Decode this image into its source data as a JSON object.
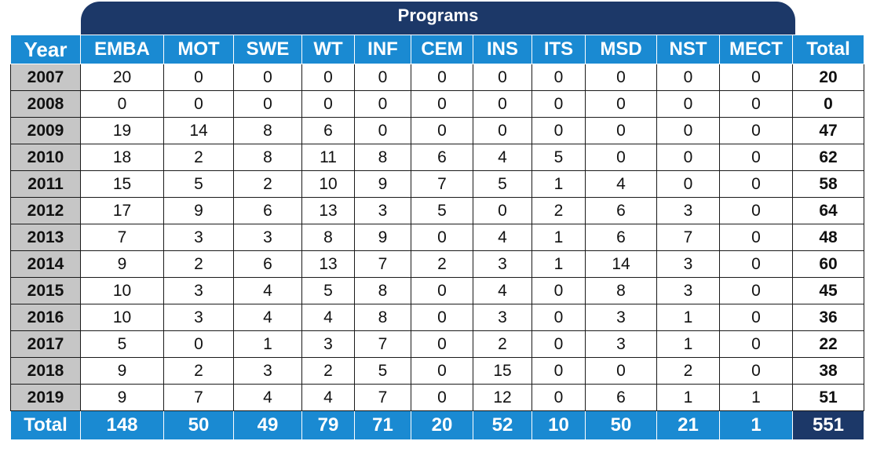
{
  "chart_data": {
    "type": "table",
    "title": "Programs",
    "year_header": "Year",
    "total_header": "Total",
    "total_row_label": "Total",
    "programs": [
      "EMBA",
      "MOT",
      "SWE",
      "WT",
      "INF",
      "CEM",
      "INS",
      "ITS",
      "MSD",
      "NST",
      "MECT"
    ],
    "rows": [
      {
        "year": "2007",
        "values": [
          "20",
          "0",
          "0",
          "0",
          "0",
          "0",
          "0",
          "0",
          "0",
          "0",
          "0"
        ],
        "total": "20"
      },
      {
        "year": "2008",
        "values": [
          "0",
          "0",
          "0",
          "0",
          "0",
          "0",
          "0",
          "0",
          "0",
          "0",
          "0"
        ],
        "total": "0"
      },
      {
        "year": "2009",
        "values": [
          "19",
          "14",
          "8",
          "6",
          "0",
          "0",
          "0",
          "0",
          "0",
          "0",
          "0"
        ],
        "total": "47"
      },
      {
        "year": "2010",
        "values": [
          "18",
          "2",
          "8",
          "11",
          "8",
          "6",
          "4",
          "5",
          "0",
          "0",
          "0"
        ],
        "total": "62"
      },
      {
        "year": "2011",
        "values": [
          "15",
          "5",
          "2",
          "10",
          "9",
          "7",
          "5",
          "1",
          "4",
          "0",
          "0"
        ],
        "total": "58"
      },
      {
        "year": "2012",
        "values": [
          "17",
          "9",
          "6",
          "13",
          "3",
          "5",
          "0",
          "2",
          "6",
          "3",
          "0"
        ],
        "total": "64"
      },
      {
        "year": "2013",
        "values": [
          "7",
          "3",
          "3",
          "8",
          "9",
          "0",
          "4",
          "1",
          "6",
          "7",
          "0"
        ],
        "total": "48"
      },
      {
        "year": "2014",
        "values": [
          "9",
          "2",
          "6",
          "13",
          "7",
          "2",
          "3",
          "1",
          "14",
          "3",
          "0"
        ],
        "total": "60"
      },
      {
        "year": "2015",
        "values": [
          "10",
          "3",
          "4",
          "5",
          "8",
          "0",
          "4",
          "0",
          "8",
          "3",
          "0"
        ],
        "total": "45"
      },
      {
        "year": "2016",
        "values": [
          "10",
          "3",
          "4",
          "4",
          "8",
          "0",
          "3",
          "0",
          "3",
          "1",
          "0"
        ],
        "total": "36"
      },
      {
        "year": "2017",
        "values": [
          "5",
          "0",
          "1",
          "3",
          "7",
          "0",
          "2",
          "0",
          "3",
          "1",
          "0"
        ],
        "total": "22"
      },
      {
        "year": "2018",
        "values": [
          "9",
          "2",
          "3",
          "2",
          "5",
          "0",
          "15",
          "0",
          "0",
          "2",
          "0"
        ],
        "total": "38"
      },
      {
        "year": "2019",
        "values": [
          "9",
          "7",
          "4",
          "4",
          "7",
          "0",
          "12",
          "0",
          "6",
          "1",
          "1"
        ],
        "total": "51"
      }
    ],
    "column_totals": [
      "148",
      "50",
      "49",
      "79",
      "71",
      "20",
      "52",
      "10",
      "50",
      "21",
      "1"
    ],
    "grand_total": "551",
    "colors": {
      "header_blue": "#1a8ad2",
      "banner_navy": "#1c3868",
      "year_cell_gray": "#c6c6c6"
    }
  }
}
